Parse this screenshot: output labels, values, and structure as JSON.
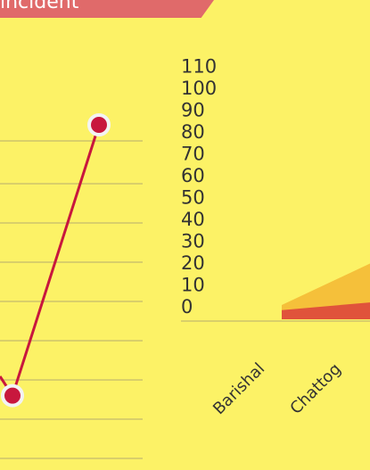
{
  "header": {
    "tag_text": "incident"
  },
  "chart_data": [
    {
      "type": "line",
      "title": "",
      "xlabel": "",
      "ylabel": "",
      "gridlines": true,
      "x": [
        1,
        2
      ],
      "y": [
        1.6,
        8.5
      ],
      "colors": {
        "line": "#c8173d",
        "marker": "#c8173d",
        "marker_border": "#f3f3f3",
        "grid": "#d9cf6a"
      }
    },
    {
      "type": "area",
      "title": "",
      "xlabel": "",
      "ylabel": "",
      "ylim": [
        0,
        110
      ],
      "yticks": [
        0,
        10,
        20,
        30,
        40,
        50,
        60,
        70,
        80,
        90,
        100,
        110
      ],
      "categories": [
        "Barishal",
        "Chattog"
      ],
      "series": [
        {
          "values": [
            10,
            16
          ],
          "color": "#f5c03a"
        },
        {
          "values": [
            4,
            6
          ],
          "color": "#e0533b"
        }
      ]
    }
  ]
}
